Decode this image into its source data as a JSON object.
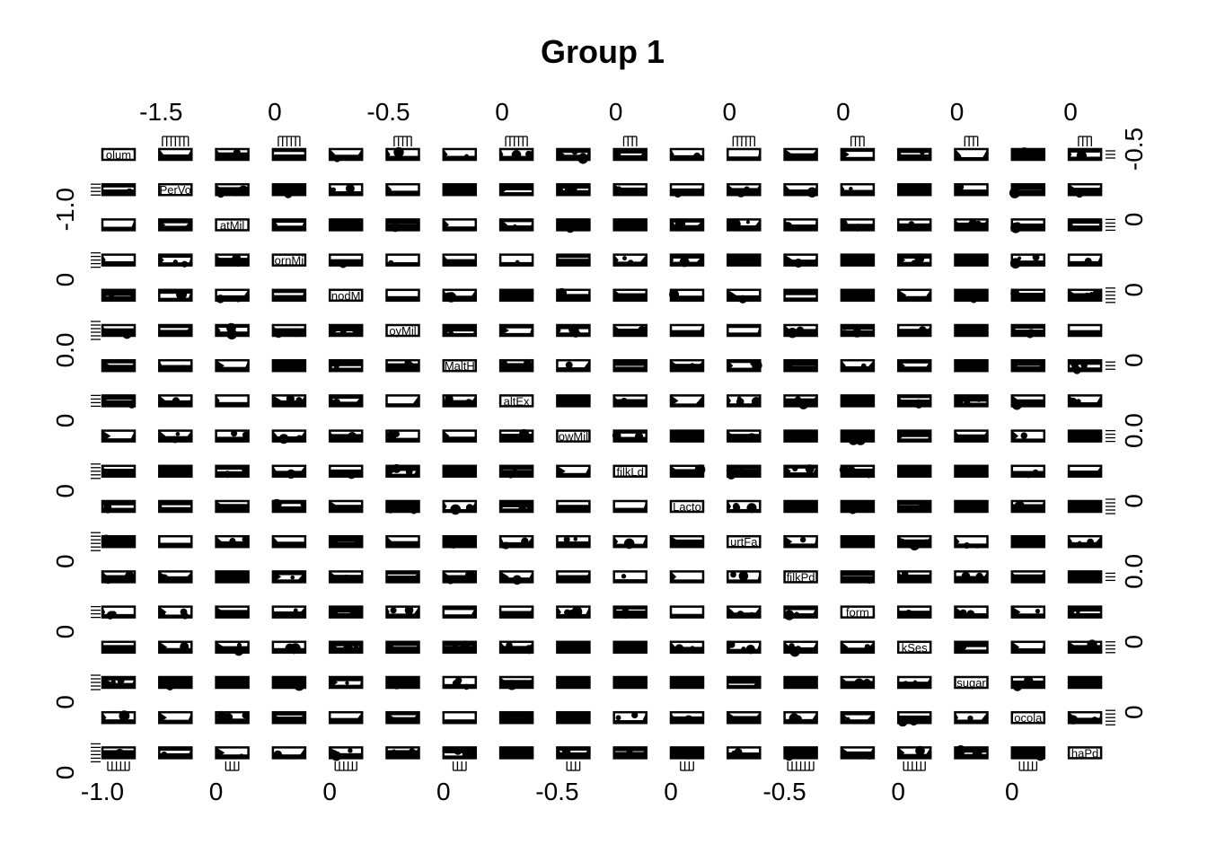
{
  "chart_data": {
    "type": "scatter",
    "title": "Group 1",
    "variables": [
      "Volume",
      "PerVol",
      "FatMilk",
      "CornMilk",
      "SmoothMilk",
      "SoyMilk",
      "MaltH",
      "MaltEx",
      "LowMilk",
      "MilkLd",
      "Lactose",
      "YogurtFat",
      "MilkPd",
      "Inform",
      "SkSes",
      "sugar",
      "Chocolate",
      "MochaPd"
    ],
    "diagonal_labels_shown": [
      "olum",
      "PerVo",
      "atMil",
      "ornMi",
      "nodM",
      "oyMil",
      "MaltH",
      "altEx",
      "owMil",
      "filkLd",
      "Lacto",
      "urtFa",
      "filkPd",
      "form",
      "kSes",
      "sugar",
      "ocola",
      "haPd"
    ],
    "top_axis_labels": [
      "-1.5",
      "0",
      "-0.5",
      "0",
      "0",
      "0",
      "0",
      "0",
      "0"
    ],
    "bottom_axis_labels": [
      "-1.0",
      "0",
      "0",
      "0",
      "-0.5",
      "0",
      "-0.5",
      "0",
      "0"
    ],
    "left_axis_labels": [
      "-1.0",
      "0",
      "0.0",
      "0",
      "0",
      "0",
      "0",
      "0",
      "0"
    ],
    "right_axis_labels": [
      "-0.5",
      "0",
      "0",
      "0",
      "0.0",
      "0",
      "0.0",
      "0",
      "0"
    ],
    "grid": false,
    "legend": "none"
  }
}
